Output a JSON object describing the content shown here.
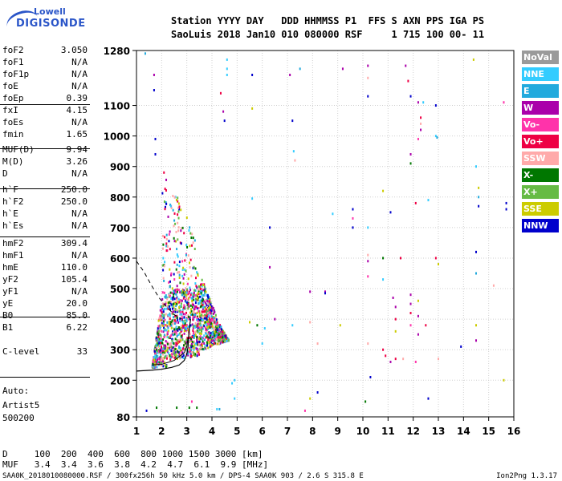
{
  "logo": {
    "line1": "Lowell",
    "line2": "DIGISONDE"
  },
  "header": {
    "line1": "Station YYYY DAY   DDD HHMMSS P1  FFS S AXN PPS IGA PS",
    "line2": "SaoLuis 2018 Jan10 010 080000 RSF     1 715 100 00- 11"
  },
  "params": [
    {
      "name": "foF2",
      "value": "3.050"
    },
    {
      "name": "foF1",
      "value": "N/A"
    },
    {
      "name": "foF1p",
      "value": "N/A"
    },
    {
      "name": "foE",
      "value": "N/A"
    },
    {
      "name": "foEp",
      "value": "0.39"
    },
    {
      "name": "fxI",
      "value": "4.15"
    },
    {
      "name": "foEs",
      "value": "N/A"
    },
    {
      "name": "fmin",
      "value": "1.65"
    },
    {
      "name": "MUF(D)",
      "value": "9.94"
    },
    {
      "name": "M(D)",
      "value": "3.26"
    },
    {
      "name": "D",
      "value": "N/A"
    },
    {
      "name": "h`F",
      "value": "250.0"
    },
    {
      "name": "h`F2",
      "value": "250.0"
    },
    {
      "name": "h`E",
      "value": "N/A"
    },
    {
      "name": "h`Es",
      "value": "N/A"
    },
    {
      "name": "hmF2",
      "value": "309.4"
    },
    {
      "name": "hmF1",
      "value": "N/A"
    },
    {
      "name": "hmE",
      "value": "110.0"
    },
    {
      "name": "yF2",
      "value": "105.4"
    },
    {
      "name": "yF1",
      "value": "N/A"
    },
    {
      "name": "yE",
      "value": "20.0"
    },
    {
      "name": "B0",
      "value": "85.0"
    },
    {
      "name": "B1",
      "value": "6.22"
    },
    {
      "name": "C-level",
      "value": "33"
    }
  ],
  "auto": {
    "line1": "Auto:",
    "line2": "Artist5",
    "line3": "500200"
  },
  "legend": [
    {
      "label": "NoVal",
      "color": "#9a9a9a"
    },
    {
      "label": "NNE",
      "color": "#33ccff"
    },
    {
      "label": "E",
      "color": "#22aadd"
    },
    {
      "label": "W",
      "color": "#aa00aa"
    },
    {
      "label": "Vo-",
      "color": "#ff33aa"
    },
    {
      "label": "Vo+",
      "color": "#ee0044"
    },
    {
      "label": "SSW",
      "color": "#ffaaaa"
    },
    {
      "label": "X-",
      "color": "#007700"
    },
    {
      "label": "X+",
      "color": "#66bb44"
    },
    {
      "label": "SSE",
      "color": "#cccc00"
    },
    {
      "label": "NNW",
      "color": "#0000cc"
    }
  ],
  "footer": {
    "d_line": "D     100  200  400  600  800 1000 1500 3000 [km]",
    "muf_line": "MUF   3.4  3.4  3.6  3.8  4.2  4.7  6.1  9.9 [MHz]",
    "file_line": "SAA0K_2018010080000.RSF / 300fx256h 50 kHz 5.0 km / DPS-4 SAA0K 903 / 2.6 S 315.8 E",
    "version": "Ion2Png 1.3.17"
  },
  "chart_data": {
    "type": "scatter",
    "xlim": [
      1,
      16
    ],
    "ylim": [
      80,
      1280
    ],
    "x_ticks": [
      "1",
      "2",
      "3",
      "4",
      "5",
      "6",
      "7",
      "8",
      "9",
      "10",
      "11",
      "12",
      "13",
      "14",
      "15",
      "16"
    ],
    "y_ticks": [
      "80",
      "200",
      "300",
      "400",
      "500",
      "600",
      "700",
      "800",
      "900",
      "1000",
      "1100",
      "1280"
    ],
    "y_tick_values": [
      80,
      200,
      300,
      400,
      500,
      600,
      700,
      800,
      900,
      1000,
      1100,
      1280
    ],
    "grid": true,
    "main_trace": {
      "freq_range": [
        1.6,
        5.0
      ],
      "height_range": [
        240,
        900
      ],
      "colors": [
        "#ee0044",
        "#ff33aa",
        "#007700",
        "#66bb44",
        "#cccc00",
        "#aa00aa",
        "#0000cc",
        "#33ccff",
        "#22aadd",
        "#ffaaaa"
      ]
    },
    "scattered_points": [
      {
        "x": 1.35,
        "y": 1270,
        "c": "#22aadd"
      },
      {
        "x": 1.7,
        "y": 1200,
        "c": "#aa00aa"
      },
      {
        "x": 1.7,
        "y": 1150,
        "c": "#0000cc"
      },
      {
        "x": 1.75,
        "y": 990,
        "c": "#0000cc"
      },
      {
        "x": 1.75,
        "y": 940,
        "c": "#0000cc"
      },
      {
        "x": 4.6,
        "y": 1250,
        "c": "#33ccff"
      },
      {
        "x": 4.6,
        "y": 1220,
        "c": "#33ccff"
      },
      {
        "x": 4.6,
        "y": 1200,
        "c": "#33ccff"
      },
      {
        "x": 4.35,
        "y": 1140,
        "c": "#ee0044"
      },
      {
        "x": 4.45,
        "y": 1080,
        "c": "#aa00aa"
      },
      {
        "x": 4.5,
        "y": 1050,
        "c": "#0000cc"
      },
      {
        "x": 5.6,
        "y": 1200,
        "c": "#0000cc"
      },
      {
        "x": 5.6,
        "y": 1090,
        "c": "#cccc00"
      },
      {
        "x": 7.1,
        "y": 1200,
        "c": "#aa00aa"
      },
      {
        "x": 7.2,
        "y": 1050,
        "c": "#0000cc"
      },
      {
        "x": 7.25,
        "y": 950,
        "c": "#33ccff"
      },
      {
        "x": 7.3,
        "y": 920,
        "c": "#ffaaaa"
      },
      {
        "x": 5.6,
        "y": 795,
        "c": "#33ccff"
      },
      {
        "x": 7.5,
        "y": 1220,
        "c": "#22aadd"
      },
      {
        "x": 9.2,
        "y": 1220,
        "c": "#aa00aa"
      },
      {
        "x": 10.2,
        "y": 1230,
        "c": "#aa00aa"
      },
      {
        "x": 10.2,
        "y": 1190,
        "c": "#ffaaaa"
      },
      {
        "x": 10.2,
        "y": 1130,
        "c": "#0000cc"
      },
      {
        "x": 11.7,
        "y": 1230,
        "c": "#aa00aa"
      },
      {
        "x": 11.8,
        "y": 1180,
        "c": "#ee0044"
      },
      {
        "x": 11.9,
        "y": 1130,
        "c": "#0000cc"
      },
      {
        "x": 12.2,
        "y": 1110,
        "c": "#aa00aa"
      },
      {
        "x": 12.3,
        "y": 1060,
        "c": "#ee0044"
      },
      {
        "x": 12.4,
        "y": 1110,
        "c": "#33ccff"
      },
      {
        "x": 12.3,
        "y": 1040,
        "c": "#ffaaaa"
      },
      {
        "x": 12.9,
        "y": 1100,
        "c": "#0000cc"
      },
      {
        "x": 12.9,
        "y": 1000,
        "c": "#33ccff"
      },
      {
        "x": 12.95,
        "y": 995,
        "c": "#22aadd"
      },
      {
        "x": 12.3,
        "y": 1020,
        "c": "#aa00aa"
      },
      {
        "x": 12.2,
        "y": 990,
        "c": "#ff33aa"
      },
      {
        "x": 11.9,
        "y": 940,
        "c": "#aa00aa"
      },
      {
        "x": 11.9,
        "y": 910,
        "c": "#007700"
      },
      {
        "x": 14.4,
        "y": 1250,
        "c": "#cccc00"
      },
      {
        "x": 14.5,
        "y": 900,
        "c": "#33ccff"
      },
      {
        "x": 14.6,
        "y": 830,
        "c": "#cccc00"
      },
      {
        "x": 14.6,
        "y": 800,
        "c": "#22aadd"
      },
      {
        "x": 14.6,
        "y": 770,
        "c": "#0000cc"
      },
      {
        "x": 15.6,
        "y": 1110,
        "c": "#ff33aa"
      },
      {
        "x": 15.7,
        "y": 780,
        "c": "#0000cc"
      },
      {
        "x": 15.7,
        "y": 760,
        "c": "#0000cc"
      },
      {
        "x": 12.6,
        "y": 790,
        "c": "#33ccff"
      },
      {
        "x": 12.1,
        "y": 780,
        "c": "#ee0044"
      },
      {
        "x": 11.1,
        "y": 750,
        "c": "#0000cc"
      },
      {
        "x": 10.8,
        "y": 820,
        "c": "#cccc00"
      },
      {
        "x": 9.6,
        "y": 760,
        "c": "#0000cc"
      },
      {
        "x": 9.6,
        "y": 730,
        "c": "#ff33aa"
      },
      {
        "x": 8.8,
        "y": 745,
        "c": "#33ccff"
      },
      {
        "x": 9.6,
        "y": 700,
        "c": "#0000cc"
      },
      {
        "x": 10.2,
        "y": 700,
        "c": "#33ccff"
      },
      {
        "x": 6.3,
        "y": 700,
        "c": "#0000cc"
      },
      {
        "x": 6.3,
        "y": 570,
        "c": "#aa00aa"
      },
      {
        "x": 10.2,
        "y": 610,
        "c": "#ffaaaa"
      },
      {
        "x": 10.2,
        "y": 590,
        "c": "#aa00aa"
      },
      {
        "x": 10.8,
        "y": 600,
        "c": "#007700"
      },
      {
        "x": 10.2,
        "y": 540,
        "c": "#ff33aa"
      },
      {
        "x": 10.8,
        "y": 530,
        "c": "#33ccff"
      },
      {
        "x": 11.5,
        "y": 600,
        "c": "#ee0044"
      },
      {
        "x": 12.9,
        "y": 600,
        "c": "#ee0044"
      },
      {
        "x": 13.0,
        "y": 580,
        "c": "#cccc00"
      },
      {
        "x": 14.5,
        "y": 620,
        "c": "#0000cc"
      },
      {
        "x": 14.5,
        "y": 550,
        "c": "#22aadd"
      },
      {
        "x": 15.2,
        "y": 510,
        "c": "#ffaaaa"
      },
      {
        "x": 7.9,
        "y": 490,
        "c": "#aa00aa"
      },
      {
        "x": 8.5,
        "y": 490,
        "c": "#aa00aa"
      },
      {
        "x": 8.5,
        "y": 485,
        "c": "#0000cc"
      },
      {
        "x": 11.2,
        "y": 470,
        "c": "#aa00aa"
      },
      {
        "x": 11.3,
        "y": 440,
        "c": "#aa00aa"
      },
      {
        "x": 11.3,
        "y": 400,
        "c": "#ee0044"
      },
      {
        "x": 11.3,
        "y": 360,
        "c": "#cccc00"
      },
      {
        "x": 11.9,
        "y": 480,
        "c": "#aa00aa"
      },
      {
        "x": 11.9,
        "y": 450,
        "c": "#aa00aa"
      },
      {
        "x": 11.9,
        "y": 420,
        "c": "#ee0044"
      },
      {
        "x": 12.2,
        "y": 460,
        "c": "#cccc00"
      },
      {
        "x": 12.2,
        "y": 410,
        "c": "#aa00aa"
      },
      {
        "x": 12.5,
        "y": 380,
        "c": "#ee0044"
      },
      {
        "x": 11.9,
        "y": 380,
        "c": "#ff33aa"
      },
      {
        "x": 12.2,
        "y": 350,
        "c": "#aa00aa"
      },
      {
        "x": 7.9,
        "y": 390,
        "c": "#ffaaaa"
      },
      {
        "x": 8.2,
        "y": 320,
        "c": "#ffaaaa"
      },
      {
        "x": 7.2,
        "y": 380,
        "c": "#33ccff"
      },
      {
        "x": 6.5,
        "y": 400,
        "c": "#aa00aa"
      },
      {
        "x": 5.8,
        "y": 380,
        "c": "#007700"
      },
      {
        "x": 6.1,
        "y": 370,
        "c": "#33ccff"
      },
      {
        "x": 5.5,
        "y": 390,
        "c": "#cccc00"
      },
      {
        "x": 6.0,
        "y": 320,
        "c": "#33ccff"
      },
      {
        "x": 9.1,
        "y": 380,
        "c": "#cccc00"
      },
      {
        "x": 10.2,
        "y": 320,
        "c": "#ffaaaa"
      },
      {
        "x": 10.8,
        "y": 300,
        "c": "#ee0044"
      },
      {
        "x": 10.9,
        "y": 280,
        "c": "#ee0044"
      },
      {
        "x": 11.3,
        "y": 270,
        "c": "#ee0044"
      },
      {
        "x": 11.1,
        "y": 260,
        "c": "#aa00aa"
      },
      {
        "x": 11.6,
        "y": 270,
        "c": "#ffaaaa"
      },
      {
        "x": 12.1,
        "y": 260,
        "c": "#ff33aa"
      },
      {
        "x": 13.0,
        "y": 270,
        "c": "#ffaaaa"
      },
      {
        "x": 14.5,
        "y": 380,
        "c": "#cccc00"
      },
      {
        "x": 14.5,
        "y": 330,
        "c": "#aa00aa"
      },
      {
        "x": 13.9,
        "y": 310,
        "c": "#0000cc"
      },
      {
        "x": 10.3,
        "y": 210,
        "c": "#0000cc"
      },
      {
        "x": 12.6,
        "y": 140,
        "c": "#0000cc"
      },
      {
        "x": 10.1,
        "y": 130,
        "c": "#007700"
      },
      {
        "x": 8.2,
        "y": 160,
        "c": "#0000cc"
      },
      {
        "x": 7.9,
        "y": 140,
        "c": "#cccc00"
      },
      {
        "x": 7.7,
        "y": 100,
        "c": "#ff33aa"
      },
      {
        "x": 15.6,
        "y": 200,
        "c": "#cccc00"
      },
      {
        "x": 4.9,
        "y": 200,
        "c": "#33ccff"
      },
      {
        "x": 4.8,
        "y": 190,
        "c": "#33ccff"
      },
      {
        "x": 4.9,
        "y": 140,
        "c": "#33ccff"
      },
      {
        "x": 1.4,
        "y": 100,
        "c": "#0000cc"
      },
      {
        "x": 1.8,
        "y": 110,
        "c": "#007700"
      },
      {
        "x": 2.6,
        "y": 110,
        "c": "#007700"
      },
      {
        "x": 3.1,
        "y": 110,
        "c": "#007700"
      },
      {
        "x": 3.4,
        "y": 110,
        "c": "#007700"
      },
      {
        "x": 3.2,
        "y": 130,
        "c": "#ff33aa"
      },
      {
        "x": 4.2,
        "y": 105,
        "c": "#33ccff"
      },
      {
        "x": 4.3,
        "y": 105,
        "c": "#22aadd"
      }
    ]
  }
}
